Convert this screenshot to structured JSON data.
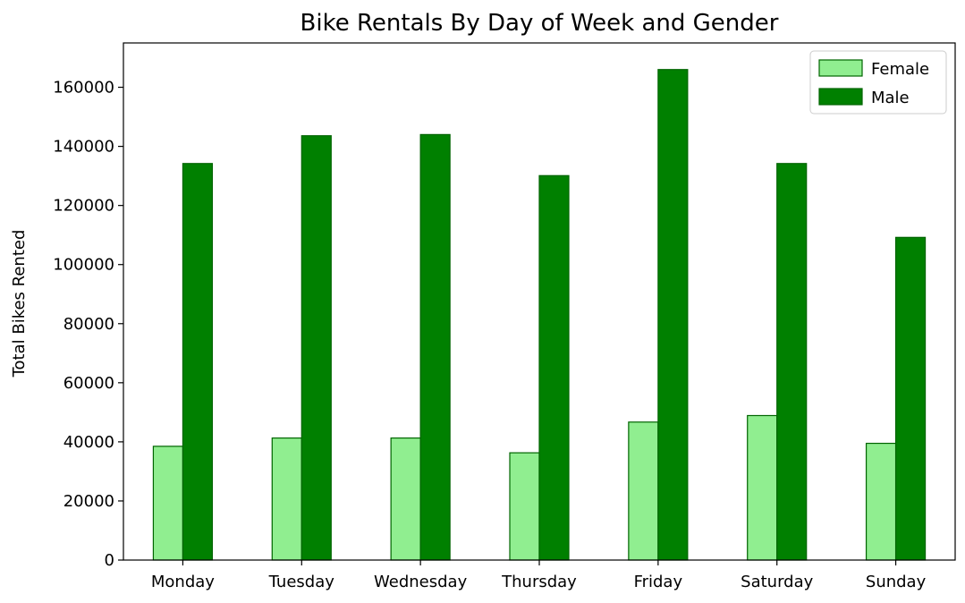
{
  "chart_data": {
    "type": "bar",
    "title": "Bike Rentals By Day of Week and Gender",
    "xlabel": "",
    "ylabel": "Total Bikes Rented",
    "categories": [
      "Monday",
      "Tuesday",
      "Wednesday",
      "Thursday",
      "Friday",
      "Saturday",
      "Sunday"
    ],
    "series": [
      {
        "name": "Female",
        "color": "#90ee90",
        "edge_color": "#006400",
        "values": [
          38500,
          41300,
          41300,
          36300,
          46700,
          48900,
          39500
        ]
      },
      {
        "name": "Male",
        "color": "#008000",
        "edge_color": "#006400",
        "values": [
          134200,
          143600,
          144000,
          130100,
          166000,
          134200,
          109200
        ]
      }
    ],
    "ylim": [
      0,
      175000
    ],
    "yticks": [
      0,
      20000,
      40000,
      60000,
      80000,
      100000,
      120000,
      140000,
      160000
    ],
    "grid": false,
    "legend": "top-right"
  }
}
